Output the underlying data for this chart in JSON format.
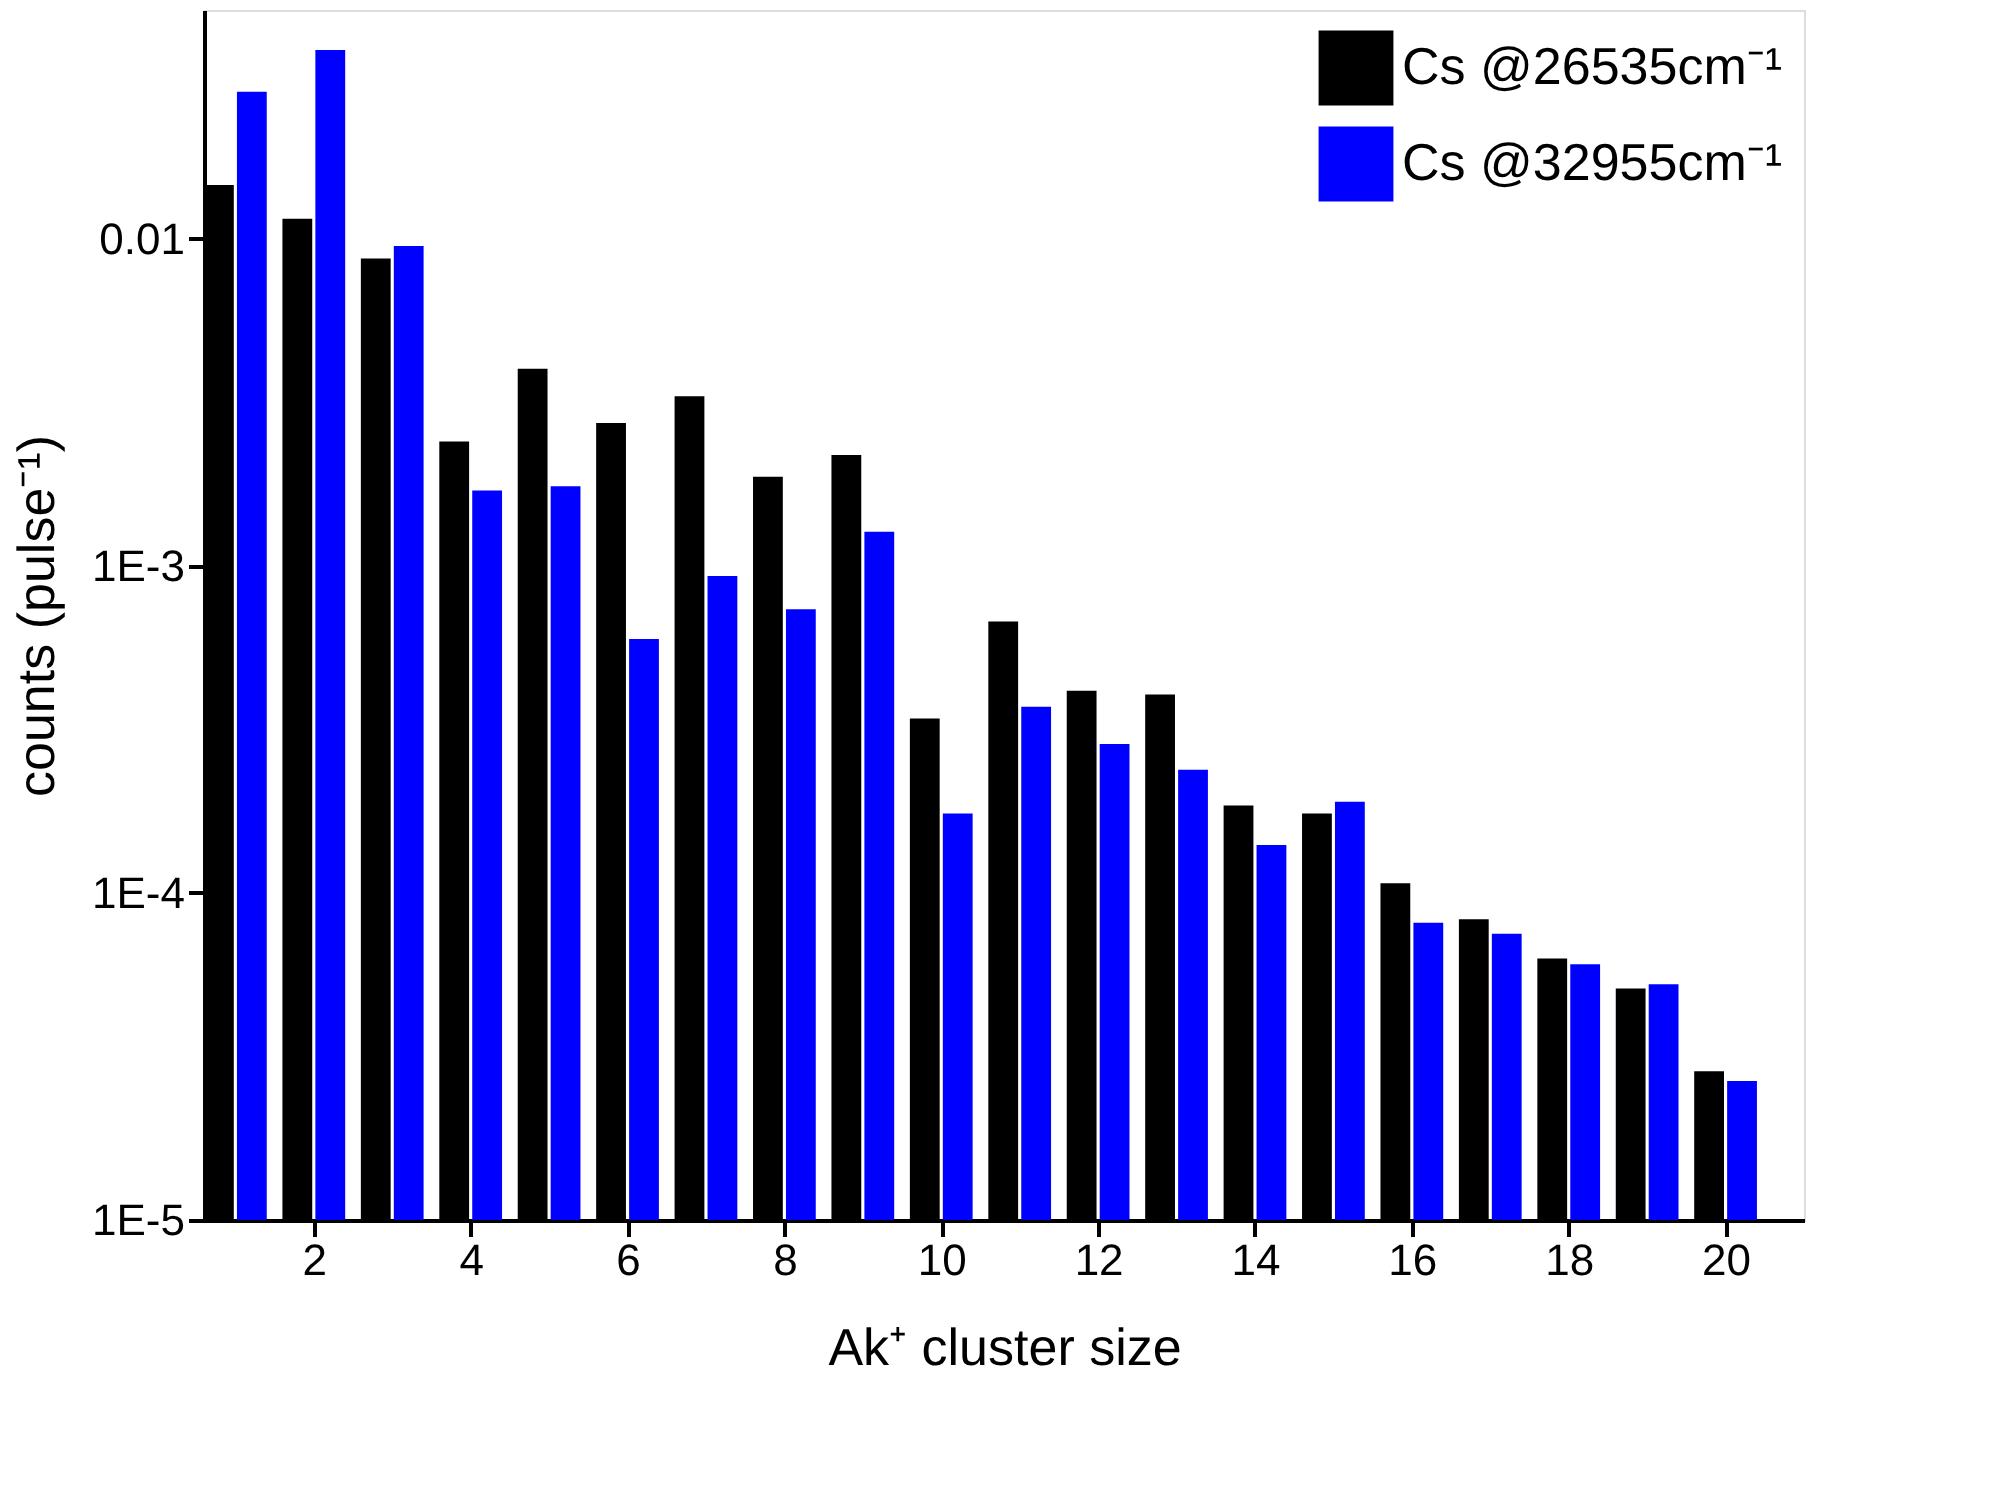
{
  "chart_data": {
    "type": "bar",
    "xlabel": "Ak⁺ cluster size",
    "ylabel": "counts (pulse⁻¹)",
    "x": [
      1,
      2,
      3,
      4,
      5,
      6,
      7,
      8,
      9,
      10,
      11,
      12,
      13,
      14,
      15,
      16,
      17,
      18,
      19,
      20
    ],
    "series": [
      {
        "name": "Cs @26535cm⁻¹",
        "color": "#000000",
        "values": [
          0.0146,
          0.0115,
          0.0087,
          0.0024,
          0.004,
          0.00273,
          0.0033,
          0.00187,
          0.00218,
          0.000341,
          0.000676,
          0.000415,
          0.000404,
          0.000185,
          0.000175,
          0.000107,
          8.3e-05,
          6.3e-05,
          5.1e-05,
          2.85e-05
        ]
      },
      {
        "name": "Cs @32955cm⁻¹",
        "color": "#0000ff",
        "values": [
          0.0281,
          0.0377,
          0.0095,
          0.0017,
          0.00175,
          0.000597,
          0.00093,
          0.000736,
          0.00127,
          0.000175,
          0.000371,
          0.000285,
          0.000238,
          0.00014,
          0.00019,
          8.1e-05,
          7.5e-05,
          6.05e-05,
          5.26e-05,
          2.66e-05
        ]
      }
    ],
    "log": "y",
    "xlim": [
      0.6,
      21.0
    ],
    "xticks": [
      2,
      4,
      6,
      8,
      10,
      12,
      14,
      16,
      18,
      20
    ],
    "ylim": [
      1e-05,
      0.05
    ],
    "yticks": [
      {
        "value": 1e-05,
        "label": "1E-5"
      },
      {
        "value": 0.0001,
        "label": "1E-4"
      },
      {
        "value": 0.001,
        "label": "1E-3"
      },
      0.01
    ],
    "grid": false,
    "legend": "top right"
  }
}
